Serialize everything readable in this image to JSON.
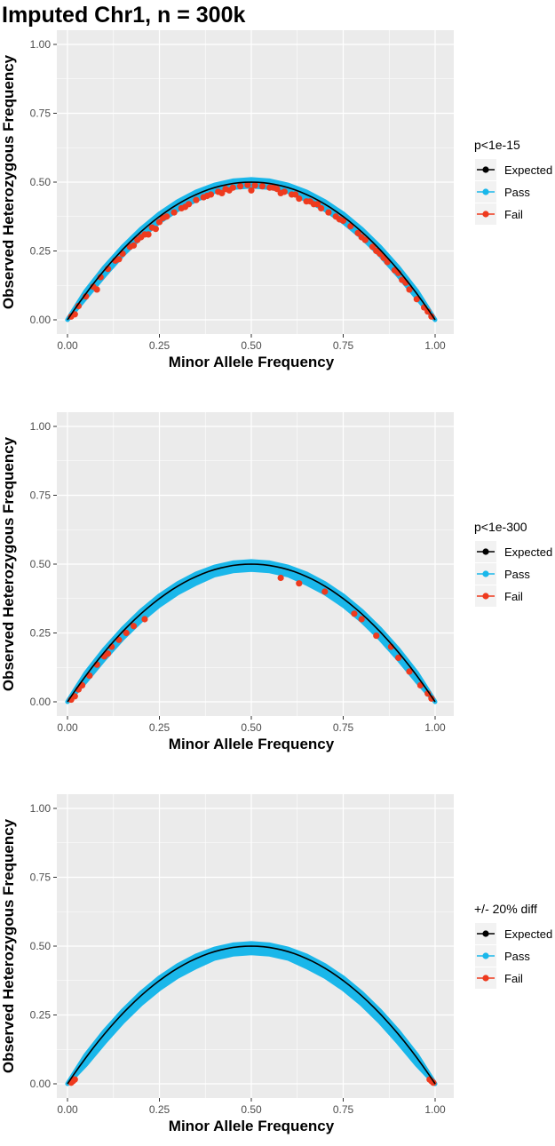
{
  "title": "Imputed Chr1, n = 300k",
  "colors": {
    "expected": "#000000",
    "pass": "#1AB7EA",
    "fail": "#EE3A1E",
    "panel_bg": "#EBEBEB",
    "grid": "#FFFFFF"
  },
  "chart_data": [
    {
      "type": "scatter",
      "xlabel": "Minor Allele Frequency",
      "ylabel": "Observed Heterozygous Frequency",
      "xlim": [
        0,
        1
      ],
      "ylim": [
        0,
        1
      ],
      "x_ticks": [
        "0.00",
        "0.25",
        "0.50",
        "0.75",
        "1.00"
      ],
      "y_ticks": [
        "0.00",
        "0.25",
        "0.50",
        "0.75",
        "1.00"
      ],
      "grid": true,
      "legend": {
        "title": "p<1e-15",
        "position": "right",
        "entries": [
          {
            "key": "expected",
            "label": "Expected"
          },
          {
            "key": "pass",
            "label": "Pass"
          },
          {
            "key": "fail",
            "label": "Fail"
          }
        ]
      },
      "series": [
        {
          "name": "Expected",
          "kind": "line",
          "x": [
            0,
            0.05,
            0.1,
            0.15,
            0.2,
            0.25,
            0.3,
            0.35,
            0.4,
            0.45,
            0.5,
            0.55,
            0.6,
            0.65,
            0.7,
            0.75,
            0.8,
            0.85,
            0.9,
            0.95,
            1.0
          ],
          "y": [
            0,
            0.095,
            0.18,
            0.255,
            0.32,
            0.375,
            0.42,
            0.455,
            0.48,
            0.495,
            0.5,
            0.495,
            0.48,
            0.455,
            0.42,
            0.375,
            0.32,
            0.255,
            0.18,
            0.095,
            0
          ]
        },
        {
          "name": "Pass",
          "kind": "band",
          "x": [
            0,
            0.05,
            0.1,
            0.15,
            0.2,
            0.25,
            0.3,
            0.35,
            0.4,
            0.45,
            0.5,
            0.55,
            0.6,
            0.65,
            0.7,
            0.75,
            0.8,
            0.85,
            0.9,
            0.95,
            1.0
          ],
          "y_low": [
            0,
            0.08,
            0.16,
            0.235,
            0.3,
            0.355,
            0.4,
            0.435,
            0.465,
            0.48,
            0.485,
            0.48,
            0.465,
            0.435,
            0.4,
            0.355,
            0.3,
            0.235,
            0.16,
            0.08,
            0
          ],
          "y_high": [
            0,
            0.105,
            0.19,
            0.265,
            0.33,
            0.385,
            0.43,
            0.465,
            0.49,
            0.505,
            0.51,
            0.505,
            0.49,
            0.465,
            0.43,
            0.385,
            0.33,
            0.265,
            0.19,
            0.105,
            0
          ]
        },
        {
          "name": "Fail",
          "kind": "points",
          "x": [
            0.01,
            0.03,
            0.05,
            0.07,
            0.09,
            0.11,
            0.13,
            0.15,
            0.17,
            0.19,
            0.21,
            0.23,
            0.25,
            0.27,
            0.29,
            0.31,
            0.33,
            0.35,
            0.37,
            0.39,
            0.41,
            0.43,
            0.45,
            0.47,
            0.49,
            0.51,
            0.53,
            0.55,
            0.57,
            0.59,
            0.61,
            0.63,
            0.65,
            0.67,
            0.69,
            0.71,
            0.73,
            0.75,
            0.77,
            0.79,
            0.81,
            0.83,
            0.85,
            0.87,
            0.89,
            0.91,
            0.93,
            0.95,
            0.97,
            0.99,
            0.02,
            0.08,
            0.14,
            0.2,
            0.26,
            0.32,
            0.38,
            0.44,
            0.5,
            0.56,
            0.62,
            0.68,
            0.74,
            0.8,
            0.86,
            0.92,
            0.98,
            0.22,
            0.24,
            0.42,
            0.58,
            0.66,
            0.84,
            0.9,
            0.18
          ],
          "y": [
            0.012,
            0.05,
            0.085,
            0.12,
            0.155,
            0.185,
            0.215,
            0.24,
            0.265,
            0.29,
            0.31,
            0.335,
            0.355,
            0.375,
            0.39,
            0.405,
            0.42,
            0.435,
            0.445,
            0.455,
            0.465,
            0.475,
            0.48,
            0.485,
            0.49,
            0.488,
            0.485,
            0.48,
            0.475,
            0.465,
            0.455,
            0.44,
            0.43,
            0.42,
            0.405,
            0.39,
            0.375,
            0.36,
            0.34,
            0.315,
            0.29,
            0.265,
            0.24,
            0.21,
            0.18,
            0.145,
            0.11,
            0.075,
            0.045,
            0.012,
            0.02,
            0.11,
            0.22,
            0.3,
            0.37,
            0.41,
            0.45,
            0.47,
            0.47,
            0.48,
            0.455,
            0.42,
            0.365,
            0.3,
            0.225,
            0.135,
            0.03,
            0.31,
            0.33,
            0.46,
            0.46,
            0.43,
            0.25,
            0.17,
            0.27
          ]
        }
      ]
    },
    {
      "type": "scatter",
      "xlabel": "Minor Allele Frequency",
      "ylabel": "Observed Heterozygous Frequency",
      "xlim": [
        0,
        1
      ],
      "ylim": [
        0,
        1
      ],
      "x_ticks": [
        "0.00",
        "0.25",
        "0.50",
        "0.75",
        "1.00"
      ],
      "y_ticks": [
        "0.00",
        "0.25",
        "0.50",
        "0.75",
        "1.00"
      ],
      "grid": true,
      "legend": {
        "title": "p<1e-300",
        "position": "right",
        "entries": [
          {
            "key": "expected",
            "label": "Expected"
          },
          {
            "key": "pass",
            "label": "Pass"
          },
          {
            "key": "fail",
            "label": "Fail"
          }
        ]
      },
      "series": [
        {
          "name": "Expected",
          "kind": "line",
          "x": [
            0,
            0.05,
            0.1,
            0.15,
            0.2,
            0.25,
            0.3,
            0.35,
            0.4,
            0.45,
            0.5,
            0.55,
            0.6,
            0.65,
            0.7,
            0.75,
            0.8,
            0.85,
            0.9,
            0.95,
            1.0
          ],
          "y": [
            0,
            0.095,
            0.18,
            0.255,
            0.32,
            0.375,
            0.42,
            0.455,
            0.48,
            0.495,
            0.5,
            0.495,
            0.48,
            0.455,
            0.42,
            0.375,
            0.32,
            0.255,
            0.18,
            0.095,
            0
          ]
        },
        {
          "name": "Pass",
          "kind": "band",
          "x": [
            0,
            0.05,
            0.1,
            0.15,
            0.2,
            0.25,
            0.3,
            0.35,
            0.4,
            0.45,
            0.5,
            0.55,
            0.6,
            0.65,
            0.7,
            0.75,
            0.8,
            0.85,
            0.9,
            0.95,
            1.0
          ],
          "y_low": [
            0,
            0.075,
            0.155,
            0.23,
            0.295,
            0.35,
            0.395,
            0.43,
            0.46,
            0.475,
            0.48,
            0.475,
            0.46,
            0.43,
            0.395,
            0.35,
            0.295,
            0.23,
            0.155,
            0.075,
            0
          ],
          "y_high": [
            0,
            0.105,
            0.19,
            0.265,
            0.33,
            0.385,
            0.43,
            0.465,
            0.49,
            0.505,
            0.51,
            0.505,
            0.49,
            0.465,
            0.43,
            0.385,
            0.33,
            0.265,
            0.19,
            0.105,
            0
          ]
        },
        {
          "name": "Fail",
          "kind": "points",
          "x": [
            0.01,
            0.02,
            0.04,
            0.06,
            0.08,
            0.1,
            0.12,
            0.14,
            0.16,
            0.18,
            0.21,
            0.58,
            0.63,
            0.7,
            0.78,
            0.8,
            0.84,
            0.88,
            0.9,
            0.93,
            0.96,
            0.98,
            0.99,
            0.03,
            0.11
          ],
          "y": [
            0.008,
            0.02,
            0.06,
            0.095,
            0.135,
            0.165,
            0.2,
            0.225,
            0.25,
            0.275,
            0.3,
            0.45,
            0.43,
            0.4,
            0.32,
            0.3,
            0.24,
            0.2,
            0.16,
            0.11,
            0.06,
            0.03,
            0.012,
            0.045,
            0.175
          ]
        }
      ]
    },
    {
      "type": "scatter",
      "xlabel": "Minor Allele Frequency",
      "ylabel": "Observed Heterozygous Frequency",
      "xlim": [
        0,
        1
      ],
      "ylim": [
        0,
        1
      ],
      "x_ticks": [
        "0.00",
        "0.25",
        "0.50",
        "0.75",
        "1.00"
      ],
      "y_ticks": [
        "0.00",
        "0.25",
        "0.50",
        "0.75",
        "1.00"
      ],
      "grid": true,
      "legend": {
        "title": "+/- 20% diff",
        "position": "right",
        "entries": [
          {
            "key": "expected",
            "label": "Expected"
          },
          {
            "key": "pass",
            "label": "Pass"
          },
          {
            "key": "fail",
            "label": "Fail"
          }
        ]
      },
      "series": [
        {
          "name": "Expected",
          "kind": "line",
          "x": [
            0,
            0.05,
            0.1,
            0.15,
            0.2,
            0.25,
            0.3,
            0.35,
            0.4,
            0.45,
            0.5,
            0.55,
            0.6,
            0.65,
            0.7,
            0.75,
            0.8,
            0.85,
            0.9,
            0.95,
            1.0
          ],
          "y": [
            0,
            0.095,
            0.18,
            0.255,
            0.32,
            0.375,
            0.42,
            0.455,
            0.48,
            0.495,
            0.5,
            0.495,
            0.48,
            0.455,
            0.42,
            0.375,
            0.32,
            0.255,
            0.18,
            0.095,
            0
          ]
        },
        {
          "name": "Pass",
          "kind": "band",
          "x": [
            0,
            0.05,
            0.1,
            0.15,
            0.2,
            0.25,
            0.3,
            0.35,
            0.4,
            0.45,
            0.5,
            0.55,
            0.6,
            0.65,
            0.7,
            0.75,
            0.8,
            0.85,
            0.9,
            0.95,
            1.0
          ],
          "y_low": [
            0,
            0.07,
            0.15,
            0.225,
            0.29,
            0.345,
            0.39,
            0.425,
            0.455,
            0.47,
            0.475,
            0.47,
            0.455,
            0.425,
            0.39,
            0.345,
            0.29,
            0.225,
            0.15,
            0.07,
            0
          ],
          "y_high": [
            0,
            0.105,
            0.19,
            0.265,
            0.33,
            0.385,
            0.43,
            0.465,
            0.49,
            0.505,
            0.51,
            0.505,
            0.49,
            0.465,
            0.43,
            0.385,
            0.33,
            0.265,
            0.19,
            0.105,
            0
          ]
        },
        {
          "name": "Fail",
          "kind": "points",
          "x": [
            0.01,
            0.015,
            0.02,
            0.985,
            0.99,
            0.995
          ],
          "y": [
            0.004,
            0.01,
            0.016,
            0.016,
            0.01,
            0.004
          ]
        }
      ]
    }
  ]
}
